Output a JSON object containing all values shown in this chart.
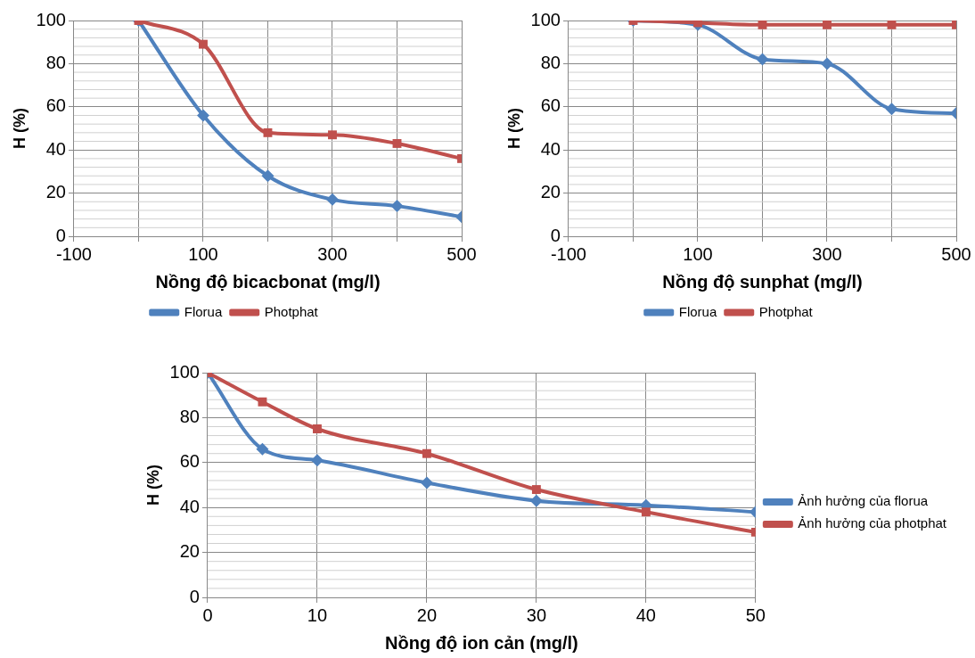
{
  "chart_data": [
    {
      "type": "line",
      "xlabel": "Nồng độ bicacbonat (mg/l)",
      "ylabel": "H (%)",
      "x": [
        0,
        100,
        200,
        300,
        400,
        500
      ],
      "xlim": [
        -100,
        500
      ],
      "xticks": [
        -100,
        {
          "value": 0,
          "label": null
        },
        100,
        {
          "value": 200,
          "label": null
        },
        300,
        {
          "value": 400,
          "label": null
        },
        500
      ],
      "ylim": [
        0,
        100
      ],
      "yticks": [
        0,
        20,
        40,
        60,
        80,
        100
      ],
      "grid": true,
      "legend": "bottom",
      "line_style": "solid",
      "series": [
        {
          "name": "Florua",
          "color": "#4f81bd",
          "marker": "diamond",
          "values": [
            100,
            56,
            28,
            17,
            14,
            9
          ]
        },
        {
          "name": "Photphat",
          "color": "#c0504d",
          "marker": "square",
          "values": [
            100,
            89,
            48,
            47,
            43,
            36
          ]
        }
      ]
    },
    {
      "type": "line",
      "xlabel": "Nồng độ sunphat (mg/l)",
      "ylabel": "H (%)",
      "x": [
        0,
        100,
        200,
        300,
        400,
        500
      ],
      "xlim": [
        -100,
        500
      ],
      "xticks": [
        -100,
        {
          "value": 0,
          "label": null
        },
        100,
        {
          "value": 200,
          "label": null
        },
        300,
        {
          "value": 400,
          "label": null
        },
        500
      ],
      "ylim": [
        0,
        100
      ],
      "yticks": [
        0,
        20,
        40,
        60,
        80,
        100
      ],
      "grid": true,
      "legend": "bottom",
      "line_style": "solid",
      "series": [
        {
          "name": "Florua",
          "color": "#4f81bd",
          "marker": "diamond",
          "values": [
            100,
            98,
            82,
            80,
            59,
            57
          ]
        },
        {
          "name": "Photphat",
          "color": "#c0504d",
          "marker": "square",
          "values": [
            100,
            99,
            98,
            98,
            98,
            98
          ]
        }
      ]
    },
    {
      "type": "line",
      "xlabel": "Nồng độ ion cản (mg/l)",
      "ylabel": "H (%)",
      "x": [
        0,
        5,
        10,
        20,
        30,
        40,
        50
      ],
      "xlim": [
        0,
        50
      ],
      "xticks": [
        0,
        10,
        20,
        30,
        40,
        50
      ],
      "ylim": [
        0,
        100
      ],
      "yticks": [
        0,
        20,
        40,
        60,
        80,
        100
      ],
      "grid": true,
      "legend": "right",
      "line_style": "solid",
      "series": [
        {
          "name": "Ảnh hưởng của florua",
          "color": "#4f81bd",
          "marker": "diamond",
          "values": [
            100,
            66,
            61,
            51,
            43,
            41,
            38
          ]
        },
        {
          "name": "Ảnh hưởng của photphat",
          "color": "#c0504d",
          "marker": "square",
          "values": [
            100,
            87,
            75,
            64,
            48,
            38,
            29
          ]
        }
      ]
    }
  ]
}
